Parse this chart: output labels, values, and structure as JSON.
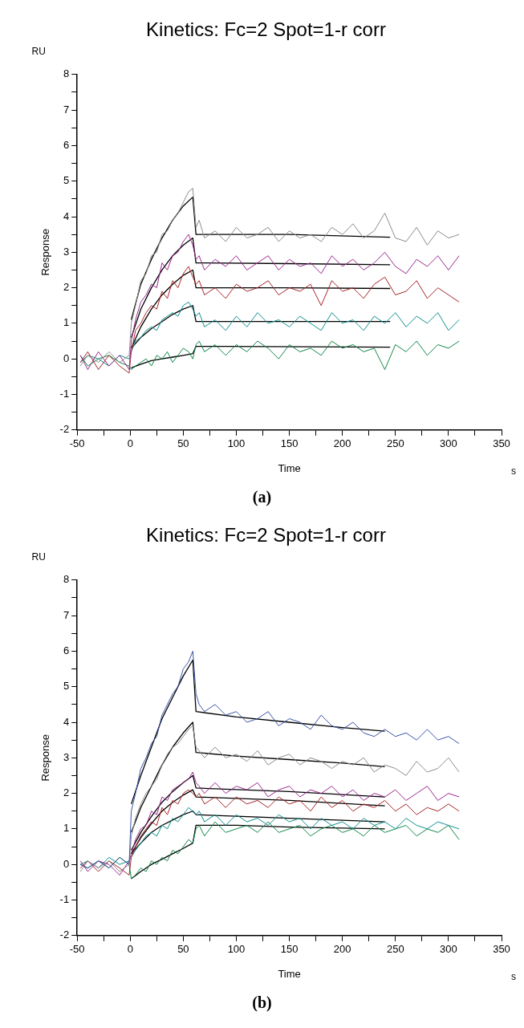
{
  "chart_data": [
    {
      "type": "line",
      "title": "Kinetics: Fc=2 Spot=1-r corr",
      "xlabel": "Time",
      "ylabel": "Response",
      "annotations": [
        "RU",
        "s",
        "(a)"
      ],
      "xlim": [
        -50,
        350
      ],
      "ylim": [
        -2,
        8
      ],
      "xticks": [
        -50,
        {
          "value": -25,
          "label": null
        },
        0,
        {
          "value": 25,
          "label": null
        },
        50,
        {
          "value": 75,
          "label": null
        },
        100,
        {
          "value": 125,
          "label": null
        },
        150,
        {
          "value": 175,
          "label": null
        },
        200,
        {
          "value": 225,
          "label": null
        },
        250,
        {
          "value": 275,
          "label": null
        },
        300,
        {
          "value": 325,
          "label": null
        },
        350
      ],
      "yticks": [
        -2,
        {
          "value": -1.5,
          "label": null
        },
        -1,
        {
          "value": -0.5,
          "label": null
        },
        0,
        {
          "value": 0.5,
          "label": null
        },
        1,
        {
          "value": 1.5,
          "label": null
        },
        2,
        {
          "value": 2.5,
          "label": null
        },
        3,
        {
          "value": 3.5,
          "label": null
        },
        4,
        {
          "value": 4.5,
          "label": null
        },
        5,
        {
          "value": 5.5,
          "label": null
        },
        6,
        {
          "value": 6.5,
          "label": null
        },
        7,
        {
          "value": 7.5,
          "label": null
        },
        8
      ],
      "marker": "none",
      "line_style": "solid",
      "legend": false,
      "x": [
        -47,
        -40,
        -30,
        -20,
        -10,
        -1,
        1,
        5,
        10,
        15,
        20,
        25,
        30,
        35,
        40,
        45,
        50,
        55,
        59,
        62,
        65,
        70,
        80,
        90,
        100,
        110,
        120,
        130,
        140,
        150,
        160,
        170,
        180,
        190,
        200,
        210,
        220,
        230,
        240,
        250,
        260,
        270,
        280,
        290,
        300,
        310
      ],
      "series": [
        {
          "color": "#8c8c8c",
          "values": [
            -0.2,
            0.1,
            -0.1,
            0.2,
            -0.1,
            0.1,
            1.0,
            1.5,
            2.2,
            2.4,
            2.9,
            3.0,
            3.5,
            3.6,
            3.9,
            4.1,
            4.4,
            4.7,
            4.8,
            3.7,
            3.9,
            3.4,
            3.6,
            3.3,
            3.7,
            3.4,
            3.5,
            3.7,
            3.3,
            3.6,
            3.4,
            3.5,
            3.3,
            3.7,
            3.5,
            3.8,
            3.4,
            3.6,
            4.1,
            3.4,
            3.3,
            3.7,
            3.2,
            3.6,
            3.4,
            3.5
          ]
        },
        {
          "color": "#9b2a8f",
          "values": [
            0.1,
            -0.3,
            0.2,
            -0.2,
            0.1,
            -0.3,
            0.5,
            1.1,
            1.6,
            1.8,
            2.1,
            2.0,
            2.7,
            2.5,
            2.9,
            3.0,
            3.3,
            3.5,
            3.2,
            2.8,
            2.9,
            2.5,
            2.8,
            2.6,
            2.9,
            2.5,
            2.7,
            2.9,
            2.5,
            2.8,
            2.6,
            2.7,
            2.4,
            2.9,
            2.6,
            2.8,
            2.5,
            2.7,
            3.0,
            2.6,
            2.4,
            2.8,
            2.6,
            2.9,
            2.5,
            2.9
          ]
        },
        {
          "color": "#a8262a",
          "values": [
            -0.1,
            0.2,
            -0.3,
            0.1,
            -0.2,
            -0.4,
            0.2,
            0.8,
            1.0,
            1.3,
            1.5,
            1.4,
            1.9,
            1.7,
            2.2,
            2.0,
            2.4,
            2.6,
            2.3,
            2.1,
            2.2,
            1.8,
            2.0,
            1.7,
            2.1,
            1.9,
            2.0,
            2.2,
            1.8,
            2.0,
            1.9,
            2.1,
            1.5,
            2.2,
            1.9,
            2.0,
            1.7,
            2.1,
            2.3,
            1.8,
            1.9,
            2.2,
            1.7,
            2.0,
            1.8,
            1.6
          ]
        },
        {
          "color": "#11908f",
          "values": [
            -0.1,
            0.1,
            0.0,
            -0.2,
            0.1,
            0.0,
            0.2,
            0.5,
            0.6,
            0.8,
            0.9,
            0.8,
            1.1,
            1.2,
            1.3,
            1.2,
            1.5,
            1.6,
            1.4,
            1.2,
            1.3,
            0.9,
            1.1,
            0.8,
            1.2,
            0.9,
            1.3,
            1.0,
            1.1,
            0.9,
            1.2,
            1.0,
            0.8,
            1.3,
            1.0,
            1.1,
            0.8,
            1.2,
            1.0,
            1.3,
            0.9,
            1.2,
            1.0,
            1.3,
            0.8,
            1.1
          ]
        },
        {
          "color": "#11884a",
          "values": [
            0.1,
            -0.2,
            0.0,
            0.1,
            -0.1,
            -0.2,
            -0.3,
            -0.2,
            -0.1,
            0.0,
            -0.2,
            0.1,
            0.0,
            0.2,
            -0.1,
            0.1,
            0.3,
            0.2,
            0.0,
            0.4,
            0.5,
            0.2,
            0.4,
            0.1,
            0.4,
            0.2,
            0.5,
            0.3,
            0.0,
            0.4,
            0.2,
            0.3,
            0.1,
            0.5,
            0.3,
            0.4,
            0.2,
            0.3,
            -0.3,
            0.4,
            0.2,
            0.5,
            0.1,
            0.4,
            0.3,
            0.5
          ]
        },
        {
          "color": "#000000",
          "x": [
            1,
            10,
            20,
            30,
            40,
            50,
            59,
            62,
            150,
            245
          ],
          "values": [
            1.1,
            2.1,
            2.8,
            3.4,
            3.9,
            4.3,
            4.55,
            3.5,
            3.5,
            3.42
          ]
        },
        {
          "color": "#000000",
          "x": [
            1,
            10,
            20,
            30,
            40,
            50,
            59,
            62,
            150,
            245
          ],
          "values": [
            0.6,
            1.4,
            2.0,
            2.5,
            2.9,
            3.2,
            3.4,
            2.7,
            2.68,
            2.65
          ]
        },
        {
          "color": "#000000",
          "x": [
            1,
            10,
            20,
            30,
            40,
            50,
            59,
            62,
            150,
            245
          ],
          "values": [
            0.3,
            0.9,
            1.4,
            1.8,
            2.1,
            2.35,
            2.5,
            2.0,
            2.0,
            1.98
          ]
        },
        {
          "color": "#000000",
          "x": [
            1,
            10,
            20,
            30,
            40,
            50,
            59,
            62,
            150,
            245
          ],
          "values": [
            0.3,
            0.6,
            0.85,
            1.05,
            1.25,
            1.4,
            1.5,
            1.05,
            1.05,
            1.05
          ]
        },
        {
          "color": "#000000",
          "x": [
            1,
            10,
            20,
            30,
            40,
            50,
            59,
            62,
            90,
            245
          ],
          "values": [
            -0.25,
            -0.15,
            -0.05,
            0.0,
            0.05,
            0.1,
            0.15,
            0.35,
            0.35,
            0.33
          ]
        }
      ]
    },
    {
      "type": "line",
      "title": "Kinetics: Fc=2 Spot=1-r corr",
      "xlabel": "Time",
      "ylabel": "Response",
      "annotations": [
        "RU",
        "s",
        "(b)"
      ],
      "xlim": [
        -50,
        350
      ],
      "ylim": [
        -2,
        8
      ],
      "xticks": [
        -50,
        {
          "value": -25,
          "label": null
        },
        0,
        {
          "value": 25,
          "label": null
        },
        50,
        {
          "value": 75,
          "label": null
        },
        100,
        {
          "value": 125,
          "label": null
        },
        150,
        {
          "value": 175,
          "label": null
        },
        200,
        {
          "value": 225,
          "label": null
        },
        250,
        {
          "value": 275,
          "label": null
        },
        300,
        {
          "value": 325,
          "label": null
        },
        350
      ],
      "yticks": [
        -2,
        {
          "value": -1.5,
          "label": null
        },
        -1,
        {
          "value": -0.5,
          "label": null
        },
        0,
        {
          "value": 0.5,
          "label": null
        },
        1,
        {
          "value": 1.5,
          "label": null
        },
        2,
        {
          "value": 2.5,
          "label": null
        },
        3,
        {
          "value": 3.5,
          "label": null
        },
        4,
        {
          "value": 4.5,
          "label": null
        },
        5,
        {
          "value": 5.5,
          "label": null
        },
        6,
        {
          "value": 6.5,
          "label": null
        },
        7,
        {
          "value": 7.5,
          "label": null
        },
        8
      ],
      "marker": "none",
      "line_style": "solid",
      "legend": false,
      "x": [
        -47,
        -40,
        -30,
        -20,
        -10,
        -1,
        1,
        5,
        10,
        15,
        20,
        25,
        30,
        35,
        40,
        45,
        50,
        55,
        59,
        62,
        65,
        70,
        80,
        90,
        100,
        110,
        120,
        130,
        140,
        150,
        160,
        170,
        180,
        190,
        200,
        210,
        220,
        230,
        240,
        250,
        260,
        270,
        280,
        290,
        300,
        310
      ],
      "series": [
        {
          "color": "#3a55a8",
          "values": [
            0,
            -0.1,
            0.1,
            -0.1,
            0.2,
            0,
            1.5,
            2.0,
            2.7,
            3.0,
            3.4,
            3.6,
            4.2,
            4.5,
            4.8,
            5.0,
            5.5,
            5.7,
            6.0,
            4.8,
            4.5,
            4.3,
            4.5,
            4.2,
            4.3,
            4.0,
            4.1,
            4.3,
            3.9,
            4.1,
            4.0,
            3.8,
            4.2,
            3.9,
            3.8,
            4.0,
            3.7,
            3.6,
            3.8,
            3.6,
            3.7,
            3.5,
            3.8,
            3.5,
            3.6,
            3.4
          ]
        },
        {
          "color": "#8c8c8c",
          "values": [
            -0.2,
            0.1,
            -0.1,
            0.1,
            -0.2,
            0,
            0.8,
            1.3,
            1.7,
            2.0,
            2.2,
            2.4,
            2.8,
            3.1,
            3.3,
            3.4,
            3.6,
            3.8,
            3.9,
            3.3,
            3.2,
            3.0,
            3.3,
            3.0,
            3.1,
            2.9,
            3.2,
            2.8,
            3.0,
            3.1,
            2.8,
            3.0,
            2.9,
            2.7,
            2.9,
            2.8,
            3.0,
            2.6,
            2.8,
            2.7,
            2.5,
            2.9,
            2.6,
            2.7,
            3.0,
            2.6
          ]
        },
        {
          "color": "#9b2a8f",
          "values": [
            0.1,
            -0.2,
            0.1,
            0,
            -0.3,
            0.1,
            0.3,
            0.7,
            1.0,
            1.1,
            1.5,
            1.4,
            1.9,
            1.8,
            2.1,
            2.2,
            2.3,
            2.4,
            2.6,
            2.3,
            2.2,
            2.0,
            2.3,
            2.0,
            2.2,
            2.1,
            2.3,
            1.9,
            2.1,
            2.2,
            1.9,
            2.1,
            2.0,
            2.2,
            1.9,
            2.1,
            1.8,
            2.0,
            1.9,
            2.1,
            1.8,
            2.0,
            2.2,
            1.8,
            2.0,
            1.9
          ]
        },
        {
          "color": "#a8262a",
          "values": [
            -0.1,
            0.1,
            -0.2,
            0.1,
            -0.1,
            -0.3,
            0.2,
            0.5,
            0.8,
            1.0,
            1.2,
            1.1,
            1.6,
            1.4,
            1.8,
            1.7,
            2.0,
            2.1,
            2.0,
            1.9,
            2.0,
            1.7,
            1.9,
            1.6,
            1.9,
            1.7,
            1.8,
            1.6,
            1.9,
            1.7,
            1.8,
            1.5,
            1.9,
            1.6,
            1.8,
            1.5,
            1.7,
            1.6,
            1.8,
            1.5,
            1.7,
            1.4,
            1.6,
            1.5,
            1.7,
            1.5
          ]
        },
        {
          "color": "#11908f",
          "values": [
            0,
            0.1,
            -0.1,
            0.2,
            0,
            0.1,
            0.2,
            0.4,
            0.6,
            0.8,
            0.9,
            0.8,
            1.1,
            1.0,
            1.3,
            1.2,
            1.4,
            1.6,
            1.5,
            1.4,
            1.5,
            1.2,
            1.4,
            1.1,
            1.4,
            1.2,
            1.3,
            1.1,
            1.4,
            1.2,
            1.3,
            1.0,
            1.3,
            1.1,
            1.2,
            1.0,
            1.3,
            1.1,
            1.2,
            1.0,
            1.3,
            1.1,
            1.0,
            1.2,
            1.1,
            1.0
          ]
        },
        {
          "color": "#11884a",
          "values": [
            0,
            -0.1,
            0.1,
            -0.1,
            0.2,
            0,
            -0.4,
            -0.3,
            -0.1,
            -0.2,
            0.1,
            0.0,
            0.2,
            0.1,
            0.4,
            0.3,
            0.5,
            0.7,
            0.6,
            1.0,
            1.1,
            0.8,
            1.2,
            0.9,
            1.0,
            1.1,
            0.9,
            1.2,
            0.9,
            1.0,
            1.1,
            0.8,
            1.0,
            1.1,
            0.9,
            1.0,
            0.8,
            1.1,
            0.9,
            1.0,
            1.1,
            0.8,
            1.0,
            0.9,
            1.1,
            0.7
          ]
        },
        {
          "color": "#000000",
          "x": [
            1,
            10,
            20,
            30,
            40,
            50,
            59,
            62,
            100,
            150,
            200,
            240
          ],
          "values": [
            1.7,
            2.5,
            3.3,
            4.1,
            4.7,
            5.3,
            5.75,
            4.3,
            4.15,
            4.0,
            3.85,
            3.75
          ]
        },
        {
          "color": "#000000",
          "x": [
            1,
            10,
            20,
            30,
            40,
            50,
            59,
            62,
            100,
            150,
            200,
            240
          ],
          "values": [
            0.9,
            1.6,
            2.2,
            2.8,
            3.3,
            3.7,
            4.0,
            3.15,
            3.05,
            2.95,
            2.85,
            2.75
          ]
        },
        {
          "color": "#000000",
          "x": [
            1,
            10,
            20,
            30,
            40,
            50,
            59,
            62,
            150,
            240
          ],
          "values": [
            0.4,
            0.9,
            1.35,
            1.75,
            2.05,
            2.3,
            2.5,
            2.15,
            2.05,
            1.9
          ]
        },
        {
          "color": "#000000",
          "x": [
            1,
            10,
            20,
            30,
            40,
            50,
            59,
            62,
            150,
            240
          ],
          "values": [
            0.3,
            0.75,
            1.15,
            1.5,
            1.75,
            1.95,
            2.1,
            1.9,
            1.8,
            1.65
          ]
        },
        {
          "color": "#000000",
          "x": [
            1,
            10,
            20,
            30,
            40,
            50,
            59,
            62,
            150,
            240
          ],
          "values": [
            0.3,
            0.6,
            0.9,
            1.1,
            1.25,
            1.4,
            1.5,
            1.4,
            1.3,
            1.2
          ]
        },
        {
          "color": "#000000",
          "x": [
            1,
            10,
            20,
            30,
            40,
            50,
            59,
            62,
            100,
            150,
            240
          ],
          "values": [
            -0.4,
            -0.2,
            0.0,
            0.15,
            0.3,
            0.45,
            0.6,
            1.1,
            1.1,
            1.05,
            1.0
          ]
        }
      ]
    }
  ]
}
